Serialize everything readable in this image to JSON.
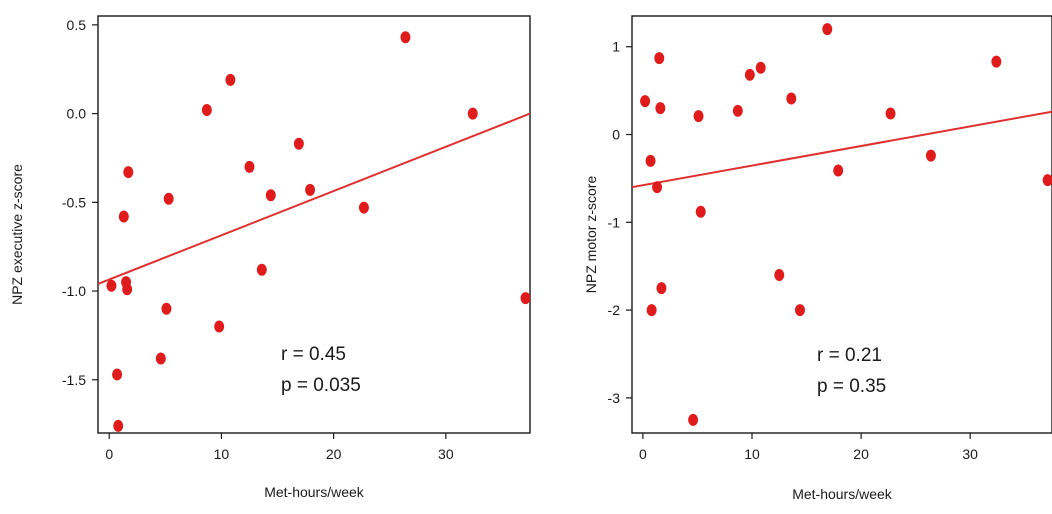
{
  "chart_data": [
    {
      "type": "scatter",
      "title": "",
      "xlabel": "Met-hours/week",
      "ylabel": "NPZ executive z-score",
      "xlim": [
        -1,
        37.5
      ],
      "ylim": [
        -1.8,
        0.55
      ],
      "xticks": [
        0,
        10,
        20,
        30
      ],
      "yticks": [
        -1.5,
        -1.0,
        -0.5,
        0.0,
        0.5
      ],
      "ytick_labels": [
        "-1.5",
        "-1.0",
        "-0.5",
        "0.0",
        "0.5"
      ],
      "points_color": "#e01b1b",
      "line_color": "#e03030",
      "x": [
        0.2,
        0.7,
        0.8,
        1.3,
        1.5,
        1.6,
        1.7,
        4.6,
        5.1,
        5.3,
        8.7,
        9.8,
        10.8,
        12.5,
        13.6,
        14.4,
        16.9,
        17.9,
        22.7,
        26.4,
        32.4,
        37.1
      ],
      "y": [
        -0.97,
        -1.47,
        -1.76,
        -0.58,
        -0.95,
        -0.99,
        -0.33,
        -1.38,
        -1.1,
        -0.48,
        0.02,
        -1.2,
        0.19,
        -0.3,
        -0.88,
        -0.46,
        -0.17,
        -0.43,
        -0.53,
        0.43,
        0.0,
        -1.04
      ],
      "fit_line": {
        "x": [
          -1,
          37.5
        ],
        "y": [
          -0.96,
          0.0
        ]
      },
      "annotations": [
        "r = 0.45",
        "p = 0.035"
      ]
    },
    {
      "type": "scatter",
      "title": "",
      "xlabel": "Met-hours/week",
      "ylabel": "NPZ motor z-score",
      "xlim": [
        -1,
        37.5
      ],
      "ylim": [
        -3.4,
        1.35
      ],
      "xticks": [
        0,
        10,
        20,
        30
      ],
      "yticks": [
        -3,
        -2,
        -1,
        0,
        1
      ],
      "ytick_labels": [
        "-3",
        "-2",
        "-1",
        "0",
        "1"
      ],
      "points_color": "#e01b1b",
      "line_color": "#e03030",
      "x": [
        0.2,
        0.7,
        0.8,
        1.3,
        1.5,
        1.6,
        1.7,
        4.6,
        5.1,
        5.3,
        8.7,
        9.8,
        10.8,
        12.5,
        13.6,
        14.4,
        16.9,
        17.9,
        22.7,
        26.4,
        32.4,
        37.1
      ],
      "y": [
        0.38,
        -0.3,
        -2.0,
        -0.6,
        0.87,
        0.3,
        -1.75,
        -3.25,
        0.21,
        -0.88,
        0.27,
        0.68,
        0.76,
        -1.6,
        0.41,
        -2.0,
        1.2,
        -0.41,
        0.24,
        -0.24,
        0.83,
        -0.52
      ],
      "fit_line": {
        "x": [
          -1,
          37.5
        ],
        "y": [
          -0.6,
          0.26
        ]
      },
      "annotations": [
        "r = 0.21",
        "p = 0.35"
      ]
    }
  ]
}
